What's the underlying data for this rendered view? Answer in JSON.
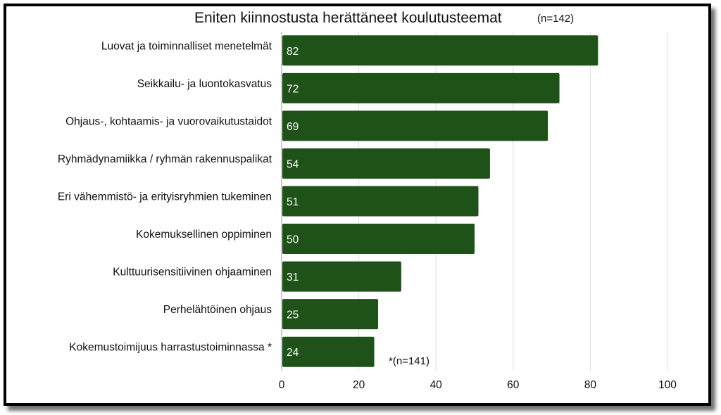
{
  "chart_data": {
    "type": "bar",
    "orientation": "horizontal",
    "title": "Eniten kiinnostusta herättäneet koulutusteemat",
    "subtitle": "(n=142)",
    "footnote": "*(n=141)",
    "categories": [
      "Luovat ja toiminnalliset menetelmät",
      "Seikkailu- ja luontokasvatus",
      "Ohjaus-, kohtaamis- ja vuorovaikutustaidot",
      "Ryhmädynamiikka / ryhmän rakennuspalikat",
      "Eri vähemmistö- ja erityisryhmien tukeminen",
      "Kokemuksellinen oppiminen",
      "Kulttuurisensitiivinen ohjaaminen",
      "Perhelähtöinen ohjaus",
      "Kokemustoimijuus harrastustoiminnassa *"
    ],
    "values": [
      82,
      72,
      69,
      54,
      51,
      50,
      31,
      25,
      24
    ],
    "xlim": [
      0,
      100
    ],
    "xticks": [
      "0",
      "20",
      "40",
      "60",
      "80",
      "100"
    ],
    "grid": true,
    "data_labels": true,
    "bar_color": "#1e5219",
    "label_color": "#ffffff"
  }
}
